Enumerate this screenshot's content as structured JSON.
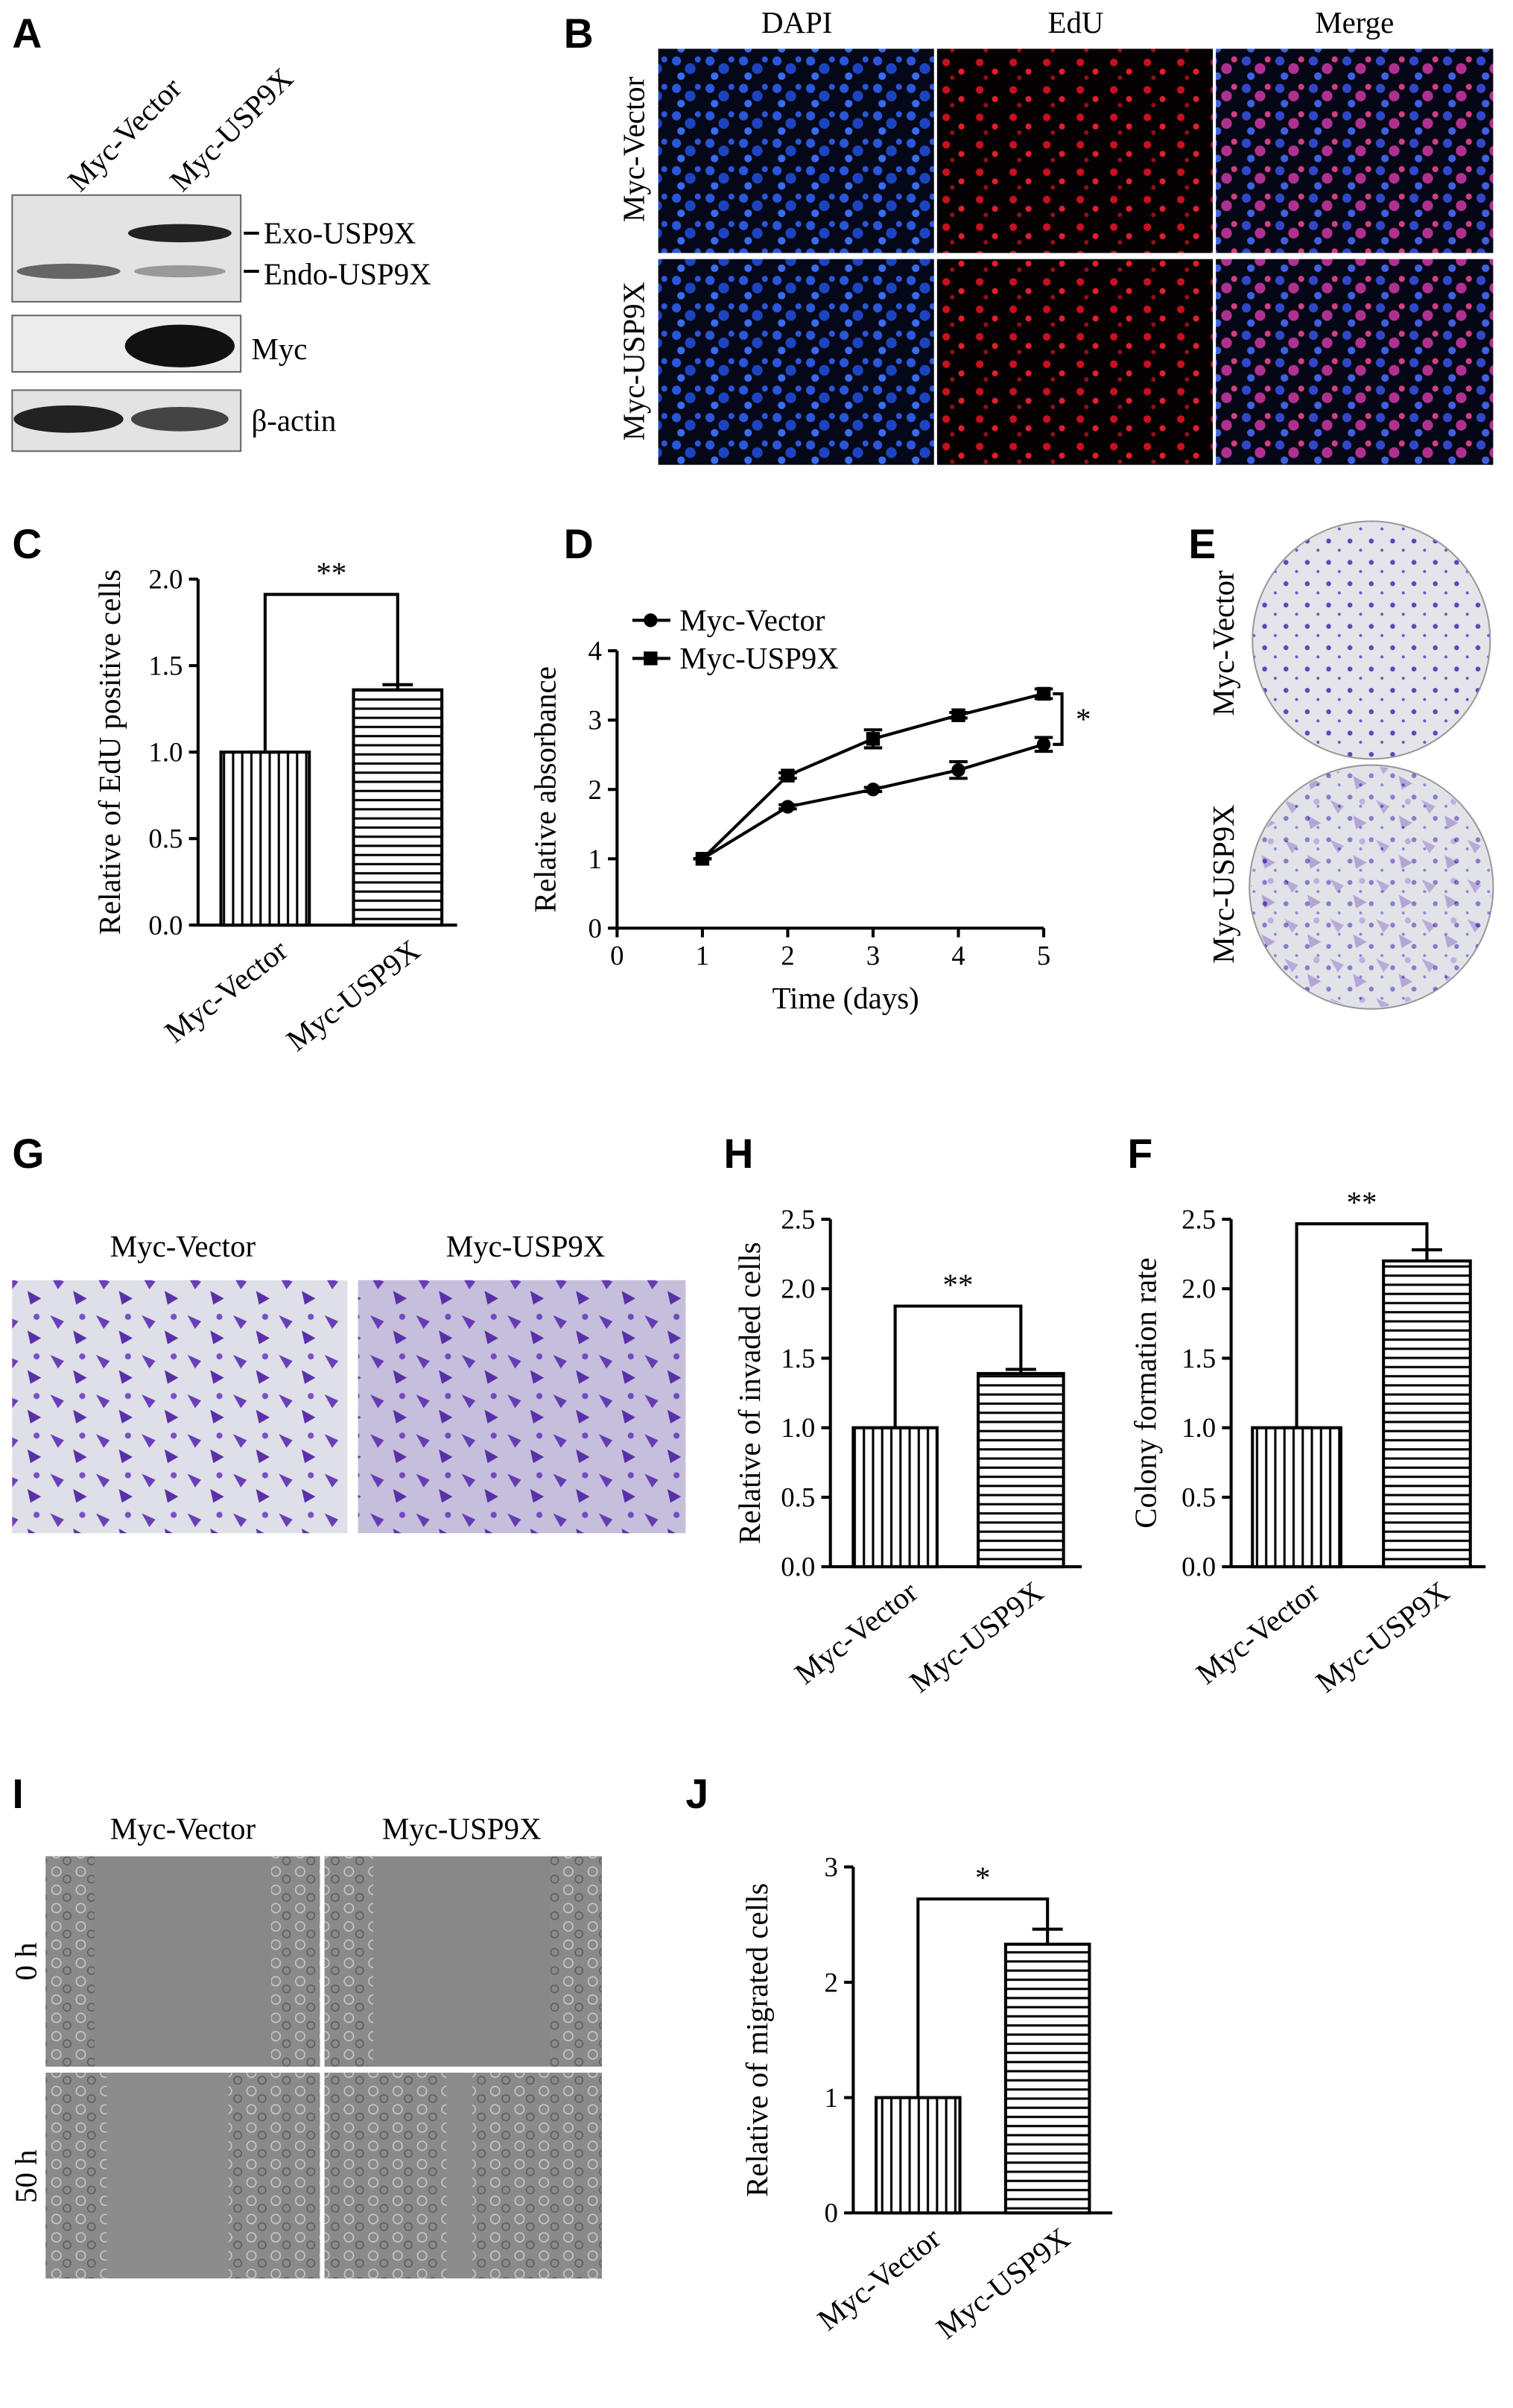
{
  "panels": {
    "A": {
      "letter": "A",
      "lanes": [
        "Myc-Vector",
        "Myc-USP9X"
      ],
      "bands": [
        "Exo-USP9X",
        "Endo-USP9X",
        "Myc",
        "β-actin"
      ]
    },
    "B": {
      "letter": "B",
      "columns": [
        "DAPI",
        "EdU",
        "Merge"
      ],
      "rows": [
        "Myc-Vector",
        "Myc-USP9X"
      ]
    },
    "E": {
      "letter": "E",
      "rows": [
        "Myc-Vector",
        "Myc-USP9X"
      ]
    },
    "G": {
      "letter": "G",
      "columns": [
        "Myc-Vector",
        "Myc-USP9X"
      ]
    },
    "I": {
      "letter": "I",
      "columns": [
        "Myc-Vector",
        "Myc-USP9X"
      ],
      "rows": [
        "0 h",
        "50 h"
      ]
    }
  },
  "chart_data": [
    {
      "type": "bar",
      "panel": "C",
      "y_label": "Relative of EdU positive cells",
      "categories": [
        "Myc-Vector",
        "Myc-USP9X"
      ],
      "values": [
        1.0,
        1.36
      ],
      "errors": [
        0,
        0.03
      ],
      "hatch": [
        "vertical",
        "horizontal"
      ],
      "ylim": [
        0,
        2.0
      ],
      "yticks": [
        {
          "value": 0,
          "label": "0.0"
        },
        {
          "value": 0.5,
          "label": "0.5"
        },
        {
          "value": 1,
          "label": "1.0"
        },
        {
          "value": 1.5,
          "label": "1.5"
        },
        {
          "value": 2,
          "label": "2.0"
        }
      ],
      "annotation": "**"
    },
    {
      "type": "line",
      "panel": "D",
      "x_label": "Time (days)",
      "y_label": "Relative absorbance",
      "x": [
        1,
        2,
        3,
        4,
        5
      ],
      "series": [
        {
          "name": "Myc-Vector",
          "color": "#000000",
          "marker": "circle",
          "values": [
            1,
            1.75,
            2.0,
            2.28,
            2.65
          ],
          "errors": [
            0,
            0.03,
            0.03,
            0.12,
            0.1
          ]
        },
        {
          "name": "Myc-USP9X",
          "color": "#000000",
          "marker": "square",
          "values": [
            1,
            2.2,
            2.73,
            3.07,
            3.38
          ],
          "errors": [
            0,
            0.04,
            0.13,
            0.04,
            0.07
          ]
        }
      ],
      "xlim": [
        0,
        5
      ],
      "xticks": [
        0,
        1,
        2,
        3,
        4,
        5
      ],
      "ylim": [
        0,
        4
      ],
      "yticks": [
        0,
        1,
        2,
        3,
        4
      ],
      "annotation": "*"
    },
    {
      "type": "bar",
      "panel": "H",
      "y_label": "Relative of invaded cells",
      "categories": [
        "Myc-Vector",
        "Myc-USP9X"
      ],
      "values": [
        1.0,
        1.39
      ],
      "errors": [
        0,
        0.03
      ],
      "hatch": [
        "vertical",
        "horizontal"
      ],
      "ylim": [
        0,
        2.5
      ],
      "yticks": [
        {
          "value": 0,
          "label": "0.0"
        },
        {
          "value": 0.5,
          "label": "0.5"
        },
        {
          "value": 1,
          "label": "1.0"
        },
        {
          "value": 1.5,
          "label": "1.5"
        },
        {
          "value": 2,
          "label": "2.0"
        },
        {
          "value": 2.5,
          "label": "2.5"
        }
      ],
      "annotation": "**"
    },
    {
      "type": "bar",
      "panel": "F",
      "y_label": "Colony formation rate",
      "categories": [
        "Myc-Vector",
        "Myc-USP9X"
      ],
      "values": [
        1.0,
        2.2
      ],
      "errors": [
        0,
        0.08
      ],
      "hatch": [
        "vertical",
        "horizontal"
      ],
      "ylim": [
        0,
        2.5
      ],
      "yticks": [
        {
          "value": 0,
          "label": "0.0"
        },
        {
          "value": 0.5,
          "label": "0.5"
        },
        {
          "value": 1,
          "label": "1.0"
        },
        {
          "value": 1.5,
          "label": "1.5"
        },
        {
          "value": 2,
          "label": "2.0"
        },
        {
          "value": 2.5,
          "label": "2.5"
        }
      ],
      "annotation": "**"
    },
    {
      "type": "bar",
      "panel": "J",
      "y_label": "Relative of migrated cells",
      "categories": [
        "Myc-Vector",
        "Myc-USP9X"
      ],
      "values": [
        1.0,
        2.33
      ],
      "errors": [
        0,
        0.13
      ],
      "hatch": [
        "vertical",
        "horizontal"
      ],
      "ylim": [
        0,
        3
      ],
      "yticks": [
        0,
        1,
        2,
        3
      ],
      "annotation": "*"
    }
  ]
}
